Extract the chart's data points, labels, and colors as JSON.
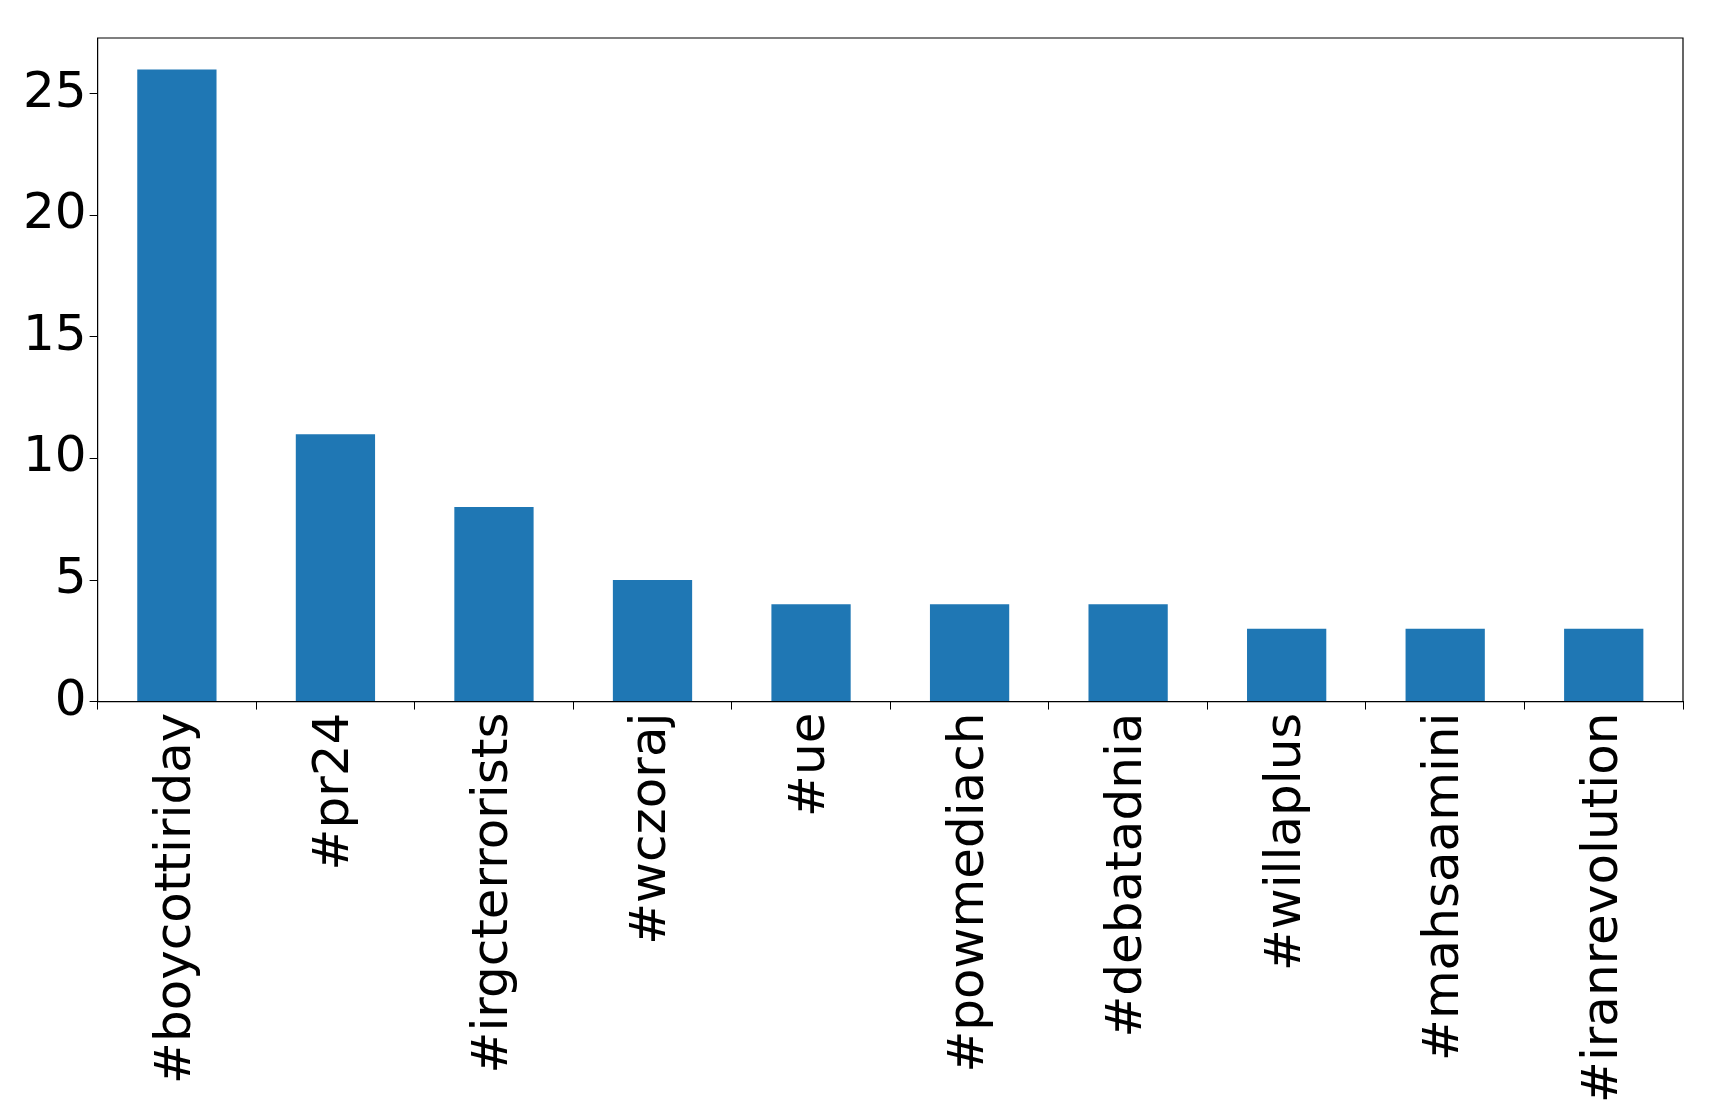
{
  "chart_data": {
    "type": "bar",
    "categories": [
      "#boycottiriday",
      "#pr24",
      "#irgcterrorists",
      "#wczoraj",
      "#ue",
      "#powmediach",
      "#debatadnia",
      "#willaplus",
      "#mahsaamini",
      "#iranrevolution"
    ],
    "values": [
      26,
      11,
      8,
      5,
      4,
      4,
      4,
      3,
      3,
      3
    ],
    "color": "#1f77b4",
    "ylim": [
      0,
      27.3
    ],
    "yticks": [
      0,
      5,
      10,
      15,
      20,
      25
    ],
    "grid": false,
    "legend": false
  }
}
